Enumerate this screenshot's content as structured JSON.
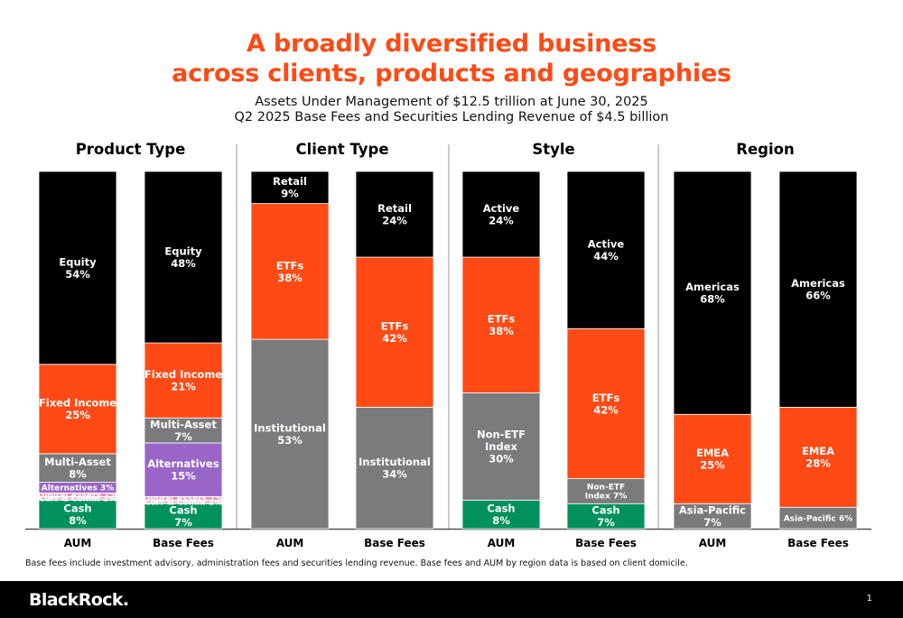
{
  "title_line1": "A broadly diversified business",
  "title_line2": "across clients, products and geographies",
  "subtitle_line1": "Assets Under Management of $12.5 trillion at June 30, 2025",
  "subtitle_line2": "Q2 2025 Base Fees and Securities Lending Revenue of $4.5 billion",
  "footnote": "Base fees include investment advisory, administration fees and securities lending revenue. Base fees and AUM by region data is based on client domicile.",
  "logo_text": "BlackRock.",
  "page_number": "1",
  "colors": {
    "black": "#000000",
    "orange": "#ff4a16",
    "gray": "#7b7b7e",
    "purple": "#9966c7",
    "pink": "#e592b6",
    "light_pink": "#f1c2cf",
    "green": "#00915c",
    "title_orange": "#ff4a16"
  },
  "chart_data": {
    "type": "stacked-bar",
    "unit": "%",
    "groups": [
      {
        "title": "Product Type",
        "bars": [
          {
            "label": "AUM",
            "segments": [
              {
                "name": "Cash",
                "value": 8,
                "color": "green",
                "text": [
                  "Cash",
                  "8%"
                ]
              },
              {
                "name": "Curr & Comm",
                "value": 1,
                "color": "light_pink",
                "text": [
                  "Curr & Comm 1%"
                ],
                "small": true
              },
              {
                "name": "Digital Assets",
                "value": 1,
                "color": "pink",
                "text": [
                  "Digital Assets 1%"
                ],
                "small": true
              },
              {
                "name": "Alternatives",
                "value": 3,
                "color": "purple",
                "text": [
                  "Alternatives 3%"
                ],
                "small": true
              },
              {
                "name": "Multi-Asset",
                "value": 8,
                "color": "gray",
                "text": [
                  "Multi-Asset",
                  "8%"
                ]
              },
              {
                "name": "Fixed Income",
                "value": 25,
                "color": "orange",
                "text": [
                  "Fixed Income",
                  "25%"
                ]
              },
              {
                "name": "Equity",
                "value": 54,
                "color": "black",
                "text": [
                  "Equity",
                  "54%"
                ]
              }
            ]
          },
          {
            "label": "Base Fees",
            "segments": [
              {
                "name": "Cash",
                "value": 7,
                "color": "green",
                "text": [
                  "Cash",
                  "7%"
                ]
              },
              {
                "name": "Curr & Comm",
                "value": 1,
                "color": "light_pink",
                "text": [
                  "Curr & Comm 1%"
                ],
                "small": true
              },
              {
                "name": "Digital Assets",
                "value": 1,
                "color": "pink",
                "text": [
                  "Digital Assets 1%"
                ],
                "small": true
              },
              {
                "name": "Alternatives",
                "value": 15,
                "color": "purple",
                "text": [
                  "Alternatives",
                  "15%"
                ]
              },
              {
                "name": "Multi-Asset",
                "value": 7,
                "color": "gray",
                "text": [
                  "Multi-Asset",
                  "7%"
                ]
              },
              {
                "name": "Fixed Income",
                "value": 21,
                "color": "orange",
                "text": [
                  "Fixed Income",
                  "21%"
                ]
              },
              {
                "name": "Equity",
                "value": 48,
                "color": "black",
                "text": [
                  "Equity",
                  "48%"
                ]
              }
            ]
          }
        ]
      },
      {
        "title": "Client Type",
        "bars": [
          {
            "label": "AUM",
            "segments": [
              {
                "name": "Institutional",
                "value": 53,
                "color": "gray",
                "text": [
                  "Institutional",
                  "53%"
                ]
              },
              {
                "name": "ETFs",
                "value": 38,
                "color": "orange",
                "text": [
                  "ETFs",
                  "38%"
                ]
              },
              {
                "name": "Retail",
                "value": 9,
                "color": "black",
                "text": [
                  "Retail",
                  "9%"
                ]
              }
            ]
          },
          {
            "label": "Base Fees",
            "segments": [
              {
                "name": "Institutional",
                "value": 34,
                "color": "gray",
                "text": [
                  "Institutional",
                  "34%"
                ]
              },
              {
                "name": "ETFs",
                "value": 42,
                "color": "orange",
                "text": [
                  "ETFs",
                  "42%"
                ]
              },
              {
                "name": "Retail",
                "value": 24,
                "color": "black",
                "text": [
                  "Retail",
                  "24%"
                ]
              }
            ]
          }
        ]
      },
      {
        "title": "Style",
        "bars": [
          {
            "label": "AUM",
            "segments": [
              {
                "name": "Cash",
                "value": 8,
                "color": "green",
                "text": [
                  "Cash",
                  "8%"
                ]
              },
              {
                "name": "Non-ETF Index",
                "value": 30,
                "color": "gray",
                "text": [
                  "Non-ETF",
                  "Index",
                  "30%"
                ]
              },
              {
                "name": "ETFs",
                "value": 38,
                "color": "orange",
                "text": [
                  "ETFs",
                  "38%"
                ]
              },
              {
                "name": "Active",
                "value": 24,
                "color": "black",
                "text": [
                  "Active",
                  "24%"
                ]
              }
            ]
          },
          {
            "label": "Base Fees",
            "segments": [
              {
                "name": "Cash",
                "value": 7,
                "color": "green",
                "text": [
                  "Cash",
                  "7%"
                ]
              },
              {
                "name": "Non-ETF Index",
                "value": 7,
                "color": "gray",
                "text": [
                  "Non-ETF",
                  "Index 7%"
                ],
                "small": true
              },
              {
                "name": "ETFs",
                "value": 42,
                "color": "orange",
                "text": [
                  "ETFs",
                  "42%"
                ]
              },
              {
                "name": "Active",
                "value": 44,
                "color": "black",
                "text": [
                  "Active",
                  "44%"
                ]
              }
            ]
          }
        ]
      },
      {
        "title": "Region",
        "bars": [
          {
            "label": "AUM",
            "segments": [
              {
                "name": "Asia-Pacific",
                "value": 7,
                "color": "gray",
                "text": [
                  "Asia-Pacific",
                  "7%"
                ]
              },
              {
                "name": "EMEA",
                "value": 25,
                "color": "orange",
                "text": [
                  "EMEA",
                  "25%"
                ]
              },
              {
                "name": "Americas",
                "value": 68,
                "color": "black",
                "text": [
                  "Americas",
                  "68%"
                ]
              }
            ]
          },
          {
            "label": "Base Fees",
            "segments": [
              {
                "name": "Asia-Pacific",
                "value": 6,
                "color": "gray",
                "text": [
                  "Asia-Pacific 6%"
                ],
                "small": true
              },
              {
                "name": "EMEA",
                "value": 28,
                "color": "orange",
                "text": [
                  "EMEA",
                  "28%"
                ]
              },
              {
                "name": "Americas",
                "value": 66,
                "color": "black",
                "text": [
                  "Americas",
                  "66%"
                ]
              }
            ]
          }
        ]
      }
    ]
  }
}
